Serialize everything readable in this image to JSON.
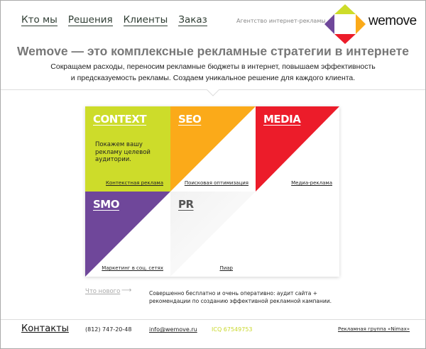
{
  "nav": [
    "Кто мы",
    "Решения",
    "Клиенты",
    "Заказ"
  ],
  "agency": "Агентство интернет-рекламы",
  "brand": "wemove",
  "headline": "Wemove — это комплексные рекламные стратегии в интернете",
  "lead": [
    "Сокращаем расходы, переносим рекламные бюджеты в интернет, повышаем эффективность",
    "и предсказуемость рекламы. Создаем уникальное решение для каждого клиента."
  ],
  "colors": {
    "context": "#cddc2a",
    "seo": "#fbaa19",
    "media": "#ec1c2a",
    "smo": "#6f479a"
  },
  "services": [
    {
      "title": "CONTEXT",
      "sub": "Контекстная реклама",
      "desc": "Покажем вашу рекламу целевой аудитории."
    },
    {
      "title": "SEO",
      "sub": "Поисковая оптимизация"
    },
    {
      "title": "MEDIA",
      "sub": "Медиа-реклама"
    },
    {
      "title": "SMO",
      "sub": "Маркетинг в соц. сетях"
    },
    {
      "title": "PR",
      "sub": "Пиар"
    }
  ],
  "news": {
    "link": "Что нового",
    "arrow": "⟶",
    "text": "Совершенно бесплатно и очень оперативно: аудит сайта + рекомендации по созданию эффективной рекламной кампании."
  },
  "footer": {
    "contacts": "Контакты",
    "phone": "(812) 747-20-48",
    "email": "info@wemove.ru",
    "icq": "ICQ  67549753",
    "group": "Рекламная группа «Nimax»"
  }
}
